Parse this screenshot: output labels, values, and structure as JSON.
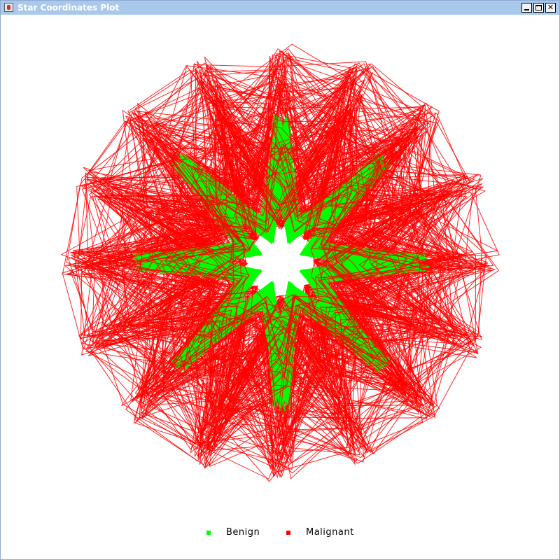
{
  "window": {
    "title": "Star Coordinates Plot",
    "buttons": {
      "minimize": "minimize",
      "maximize": "maximize",
      "close": "close"
    }
  },
  "colors": {
    "titlebar": "#a8c8ec",
    "benign": "#00ff00",
    "malignant": "#ff0000"
  },
  "chart_data": {
    "type": "star-coordinates",
    "title": "",
    "axis_count": 16,
    "series": [
      {
        "name": "Benign",
        "color": "#00ff00",
        "count": 260,
        "spread": 0.42
      },
      {
        "name": "Malignant",
        "color": "#ff0000",
        "count": 190,
        "spread": 0.95
      }
    ],
    "legend": {
      "placement": "bottom-center",
      "entries": [
        {
          "label": "Benign",
          "color": "#00ff00"
        },
        {
          "label": "Malignant",
          "color": "#ff0000"
        }
      ]
    }
  }
}
